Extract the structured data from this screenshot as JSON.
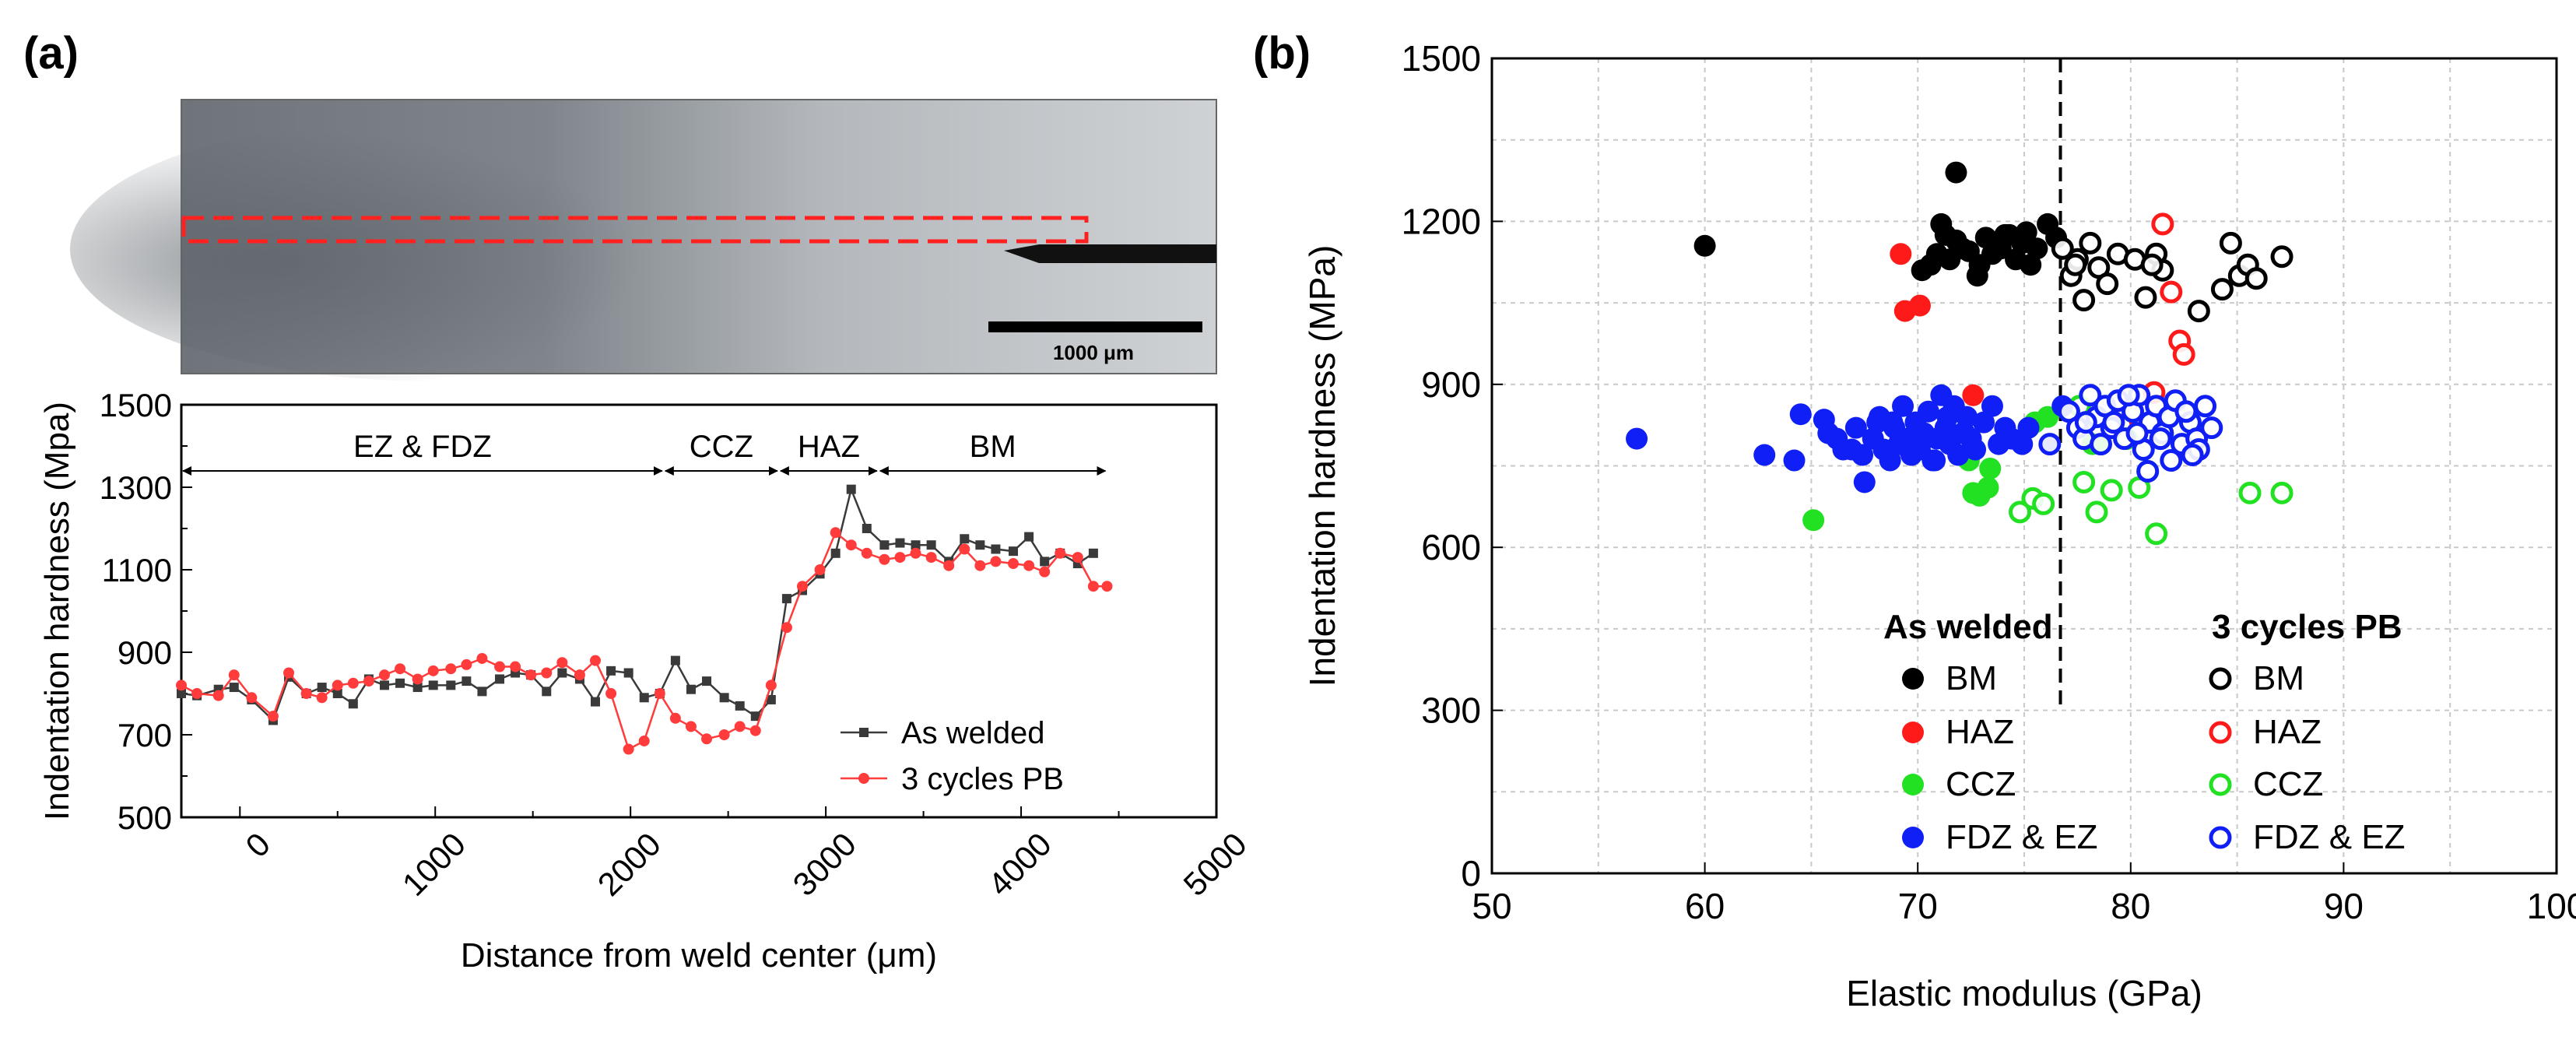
{
  "panel_a": {
    "label": "(a)",
    "micrograph": {
      "scale_bar_label": "1000 μm"
    }
  },
  "panel_b": {
    "label": "(b)"
  },
  "chart_data": [
    {
      "type": "line",
      "title": "",
      "xlabel": "Distance from weld center (μm)",
      "ylabel": "Indentation hardness (Mpa)",
      "xlim": [
        -300,
        5000
      ],
      "ylim": [
        500,
        1500
      ],
      "xticks": [
        0,
        1000,
        2000,
        3000,
        4000,
        5000
      ],
      "yticks": [
        500,
        700,
        900,
        1100,
        1300,
        1500
      ],
      "zones": [
        {
          "label": "EZ & FDZ",
          "from": -300,
          "to": 2170
        },
        {
          "label": "CCZ",
          "from": 2170,
          "to": 2760
        },
        {
          "label": "HAZ",
          "from": 2760,
          "to": 3270
        },
        {
          "label": "BM",
          "from": 3270,
          "to": 4440
        }
      ],
      "series": [
        {
          "name": "As welded",
          "color": "#3a3a3a",
          "marker": "square",
          "x": [
            -300,
            -220,
            -110,
            -30,
            60,
            170,
            250,
            340,
            420,
            500,
            580,
            660,
            740,
            820,
            910,
            990,
            1080,
            1160,
            1240,
            1330,
            1410,
            1490,
            1570,
            1650,
            1740,
            1820,
            1900,
            1990,
            2070,
            2150,
            2230,
            2310,
            2390,
            2480,
            2560,
            2640,
            2720,
            2800,
            2880,
            2970,
            3050,
            3130,
            3210,
            3300,
            3380,
            3460,
            3540,
            3630,
            3710,
            3790,
            3870,
            3960,
            4040,
            4120,
            4200,
            4290,
            4370
          ],
          "y": [
            800,
            795,
            810,
            815,
            785,
            735,
            840,
            800,
            815,
            800,
            775,
            835,
            820,
            825,
            815,
            820,
            820,
            830,
            805,
            835,
            850,
            845,
            805,
            850,
            835,
            780,
            855,
            850,
            790,
            800,
            880,
            810,
            830,
            790,
            770,
            745,
            785,
            1030,
            1050,
            1090,
            1140,
            1295,
            1200,
            1160,
            1165,
            1160,
            1160,
            1120,
            1175,
            1160,
            1150,
            1145,
            1180,
            1120,
            1140,
            1115,
            1140
          ]
        },
        {
          "name": "3 cycles PB",
          "color": "#ff3b3b",
          "marker": "circle",
          "x": [
            -300,
            -220,
            -110,
            -30,
            60,
            170,
            250,
            340,
            420,
            500,
            580,
            660,
            740,
            820,
            910,
            990,
            1080,
            1160,
            1240,
            1330,
            1410,
            1490,
            1570,
            1650,
            1740,
            1820,
            1900,
            1990,
            2070,
            2150,
            2230,
            2310,
            2390,
            2480,
            2560,
            2640,
            2720,
            2800,
            2880,
            2970,
            3050,
            3130,
            3210,
            3300,
            3380,
            3460,
            3540,
            3630,
            3710,
            3790,
            3870,
            3960,
            4040,
            4120,
            4200,
            4290,
            4370,
            4440
          ],
          "y": [
            820,
            800,
            795,
            845,
            790,
            745,
            850,
            800,
            790,
            820,
            825,
            830,
            845,
            860,
            835,
            855,
            860,
            870,
            885,
            865,
            865,
            845,
            850,
            875,
            845,
            880,
            800,
            665,
            685,
            800,
            740,
            720,
            690,
            700,
            720,
            710,
            820,
            960,
            1060,
            1100,
            1190,
            1160,
            1140,
            1125,
            1130,
            1140,
            1130,
            1110,
            1150,
            1110,
            1120,
            1115,
            1110,
            1095,
            1140,
            1130,
            1060,
            1060
          ]
        }
      ],
      "legend": [
        {
          "label": "As welded"
        },
        {
          "label": "3 cycles PB"
        }
      ],
      "legend_position": "bottom-right"
    },
    {
      "type": "scatter",
      "title": "",
      "xlabel": "Elastic modulus (GPa)",
      "ylabel": "Indentation hardness (MPa)",
      "xlim": [
        50,
        100
      ],
      "ylim": [
        0,
        1500
      ],
      "xticks": [
        50,
        60,
        70,
        80,
        90,
        100
      ],
      "yticks": [
        0,
        300,
        600,
        900,
        1200,
        1500
      ],
      "grid": true,
      "vline_x": 76.7,
      "legend_headers": [
        "As welded",
        "3 cycles PB"
      ],
      "legend_position": "bottom-center",
      "series": [
        {
          "name": "BM",
          "group": "As welded",
          "color": "#000000",
          "filled": true,
          "x": [
            60,
            71.8,
            70.2,
            71.1,
            71.5,
            70.6,
            71.8,
            72.4,
            72.8,
            73.2,
            73.5,
            72.9,
            74.1,
            74.6,
            75.1,
            75.6,
            76.1,
            74.9,
            75.3,
            73.9,
            74.3,
            72.1,
            76.5,
            71.3,
            70.9
          ],
          "y": [
            1155,
            1290,
            1110,
            1195,
            1130,
            1120,
            1165,
            1145,
            1100,
            1170,
            1140,
            1120,
            1175,
            1130,
            1180,
            1150,
            1195,
            1160,
            1120,
            1150,
            1175,
            1150,
            1170,
            1175,
            1140
          ]
        },
        {
          "name": "BM",
          "group": "3 cycles PB",
          "color": "#000000",
          "filled": false,
          "x": [
            76.8,
            77.2,
            77.5,
            77.8,
            78.1,
            78.5,
            78.9,
            79.4,
            80.2,
            80.7,
            81.2,
            81.5,
            83.2,
            84.3,
            84.7,
            85.1,
            85.5,
            85.9,
            87.1,
            77.4,
            81
          ],
          "y": [
            1150,
            1100,
            1130,
            1055,
            1160,
            1115,
            1085,
            1140,
            1130,
            1060,
            1140,
            1110,
            1035,
            1075,
            1160,
            1100,
            1120,
            1095,
            1135,
            1120,
            1120
          ]
        },
        {
          "name": "HAZ",
          "group": "As welded",
          "color": "#ff1a1a",
          "filled": true,
          "x": [
            69.2,
            69.4,
            70.1,
            72.6
          ],
          "y": [
            1140,
            1035,
            1045,
            880
          ]
        },
        {
          "name": "HAZ",
          "group": "3 cycles PB",
          "color": "#ff1a1a",
          "filled": false,
          "x": [
            81.5,
            81.9,
            82.3,
            82.5,
            79.6,
            81.1
          ],
          "y": [
            1195,
            1070,
            980,
            955,
            825,
            885
          ]
        },
        {
          "name": "CCZ",
          "group": "As welded",
          "color": "#22e022",
          "filled": true,
          "x": [
            65.1,
            72.6,
            72.9,
            73.3,
            73.4,
            75.2,
            75.5,
            76.1,
            78.2,
            78.6,
            72.4
          ],
          "y": [
            650,
            700,
            695,
            710,
            745,
            820,
            830,
            840,
            790,
            790,
            760
          ]
        },
        {
          "name": "CCZ",
          "group": "3 cycles PB",
          "color": "#22e022",
          "filled": false,
          "x": [
            74.8,
            75.4,
            75.9,
            77.8,
            78.4,
            79.1,
            80.4,
            80.8,
            81.2,
            85.6,
            87.1,
            77.6,
            79.8
          ],
          "y": [
            665,
            690,
            680,
            720,
            665,
            705,
            710,
            740,
            625,
            700,
            700,
            860,
            800
          ]
        },
        {
          "name": "FDZ & EZ",
          "group": "As welded",
          "color": "#0f1ff5",
          "filled": true,
          "x": [
            56.8,
            62.8,
            64.2,
            64.5,
            65.6,
            66.2,
            66.9,
            67.1,
            67.5,
            67.9,
            68.2,
            68.4,
            68.7,
            68.9,
            69.1,
            69.3,
            69.5,
            69.7,
            69.9,
            70.1,
            70.3,
            70.5,
            70.7,
            70.9,
            71.1,
            71.3,
            71.5,
            71.7,
            71.9,
            72.1,
            72.3,
            72.5,
            72.7,
            73.1,
            73.5,
            74.1,
            74.4,
            74.9,
            75.2,
            67.4,
            68.1,
            69.6,
            70.2,
            70.8,
            71.4,
            72.2,
            73.8,
            76.2,
            76.8,
            65.8,
            66.5,
            68.8,
            71.2
          ],
          "y": [
            800,
            770,
            760,
            845,
            835,
            800,
            780,
            820,
            720,
            800,
            840,
            780,
            760,
            820,
            790,
            860,
            800,
            770,
            830,
            780,
            810,
            850,
            760,
            800,
            880,
            820,
            790,
            860,
            770,
            810,
            840,
            800,
            780,
            830,
            860,
            820,
            800,
            790,
            820,
            770,
            830,
            780,
            800,
            760,
            840,
            810,
            790,
            790,
            860,
            810,
            780,
            830,
            800
          ]
        },
        {
          "name": "FDZ & EZ",
          "group": "3 cycles PB",
          "color": "#0f1ff5",
          "filled": false,
          "x": [
            76.2,
            77.1,
            77.5,
            77.8,
            78.1,
            78.4,
            78.8,
            79.1,
            79.4,
            79.7,
            80.1,
            80.4,
            80.6,
            80.9,
            81.2,
            81.5,
            81.8,
            82.1,
            82.4,
            82.8,
            83.1,
            83.5,
            83.8,
            78.6,
            79.9,
            80.8,
            81.9,
            82.6,
            83.2,
            79.2,
            80.3,
            81.4,
            77.9,
            82.9
          ],
          "y": [
            790,
            850,
            820,
            800,
            880,
            840,
            860,
            820,
            870,
            800,
            850,
            880,
            780,
            830,
            860,
            810,
            840,
            870,
            790,
            830,
            800,
            860,
            820,
            790,
            880,
            740,
            760,
            850,
            780,
            830,
            810,
            800,
            830,
            770
          ]
        }
      ]
    }
  ]
}
